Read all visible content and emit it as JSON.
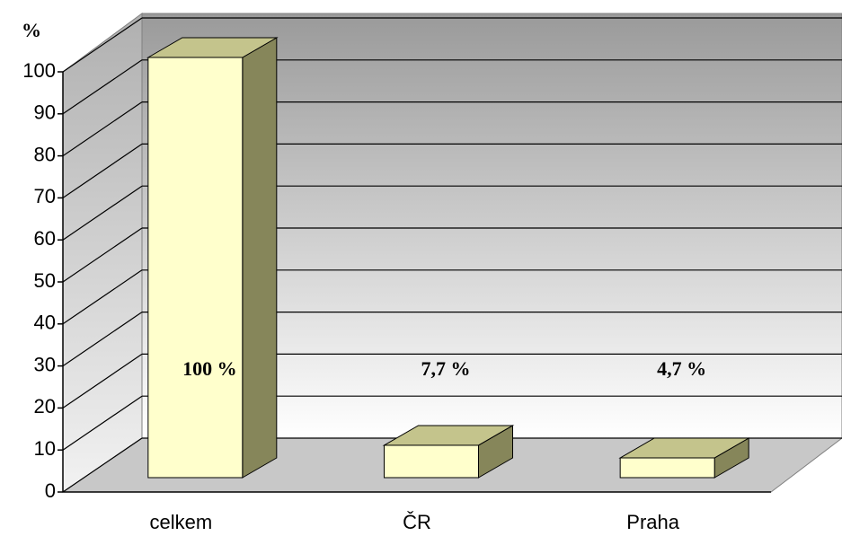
{
  "chart_data": {
    "type": "bar3d",
    "y_label": "%",
    "categories": [
      "celkem",
      "ČR",
      "Praha"
    ],
    "values": [
      100,
      7.7,
      4.7
    ],
    "value_labels": [
      "100 %",
      "7,7 %",
      "4,7 %"
    ],
    "color": "#ffffcc",
    "ylim": [
      0,
      100
    ],
    "yticks": [
      0,
      10,
      20,
      30,
      40,
      50,
      60,
      70,
      80,
      90,
      100
    ],
    "grid": true
  }
}
